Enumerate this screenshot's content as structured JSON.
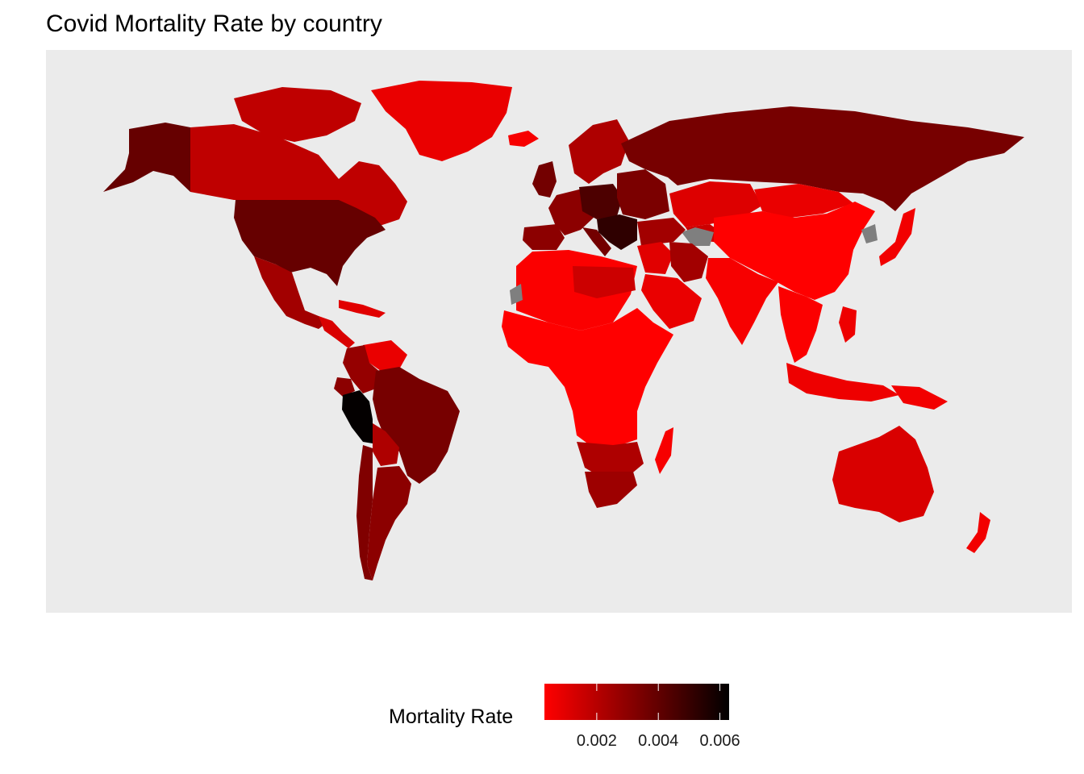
{
  "title": "Covid Mortality Rate by country",
  "map": {
    "background": "#EBEBEB",
    "missing_color": "#7F7F7F",
    "scale": {
      "low": "#FF0000",
      "high": "#000000",
      "range": [
        0.0003,
        0.0063
      ]
    },
    "regions": [
      {
        "name": "greenland",
        "value": 0.0008
      },
      {
        "name": "canada",
        "value": 0.0018
      },
      {
        "name": "alaska",
        "value": 0.0039
      },
      {
        "name": "usa",
        "value": 0.0039
      },
      {
        "name": "mexico",
        "value": 0.0025
      },
      {
        "name": "central-america",
        "value": 0.0012
      },
      {
        "name": "cuba",
        "value": 0.001
      },
      {
        "name": "colombia",
        "value": 0.0028
      },
      {
        "name": "venezuela",
        "value": 0.0008
      },
      {
        "name": "ecuador",
        "value": 0.003
      },
      {
        "name": "peru",
        "value": 0.0062
      },
      {
        "name": "brazil",
        "value": 0.0035
      },
      {
        "name": "bolivia",
        "value": 0.0022
      },
      {
        "name": "argentina",
        "value": 0.003
      },
      {
        "name": "chile",
        "value": 0.0033
      },
      {
        "name": "iceland",
        "value": 0.0005
      },
      {
        "name": "uk-ireland",
        "value": 0.0036
      },
      {
        "name": "scandinavia",
        "value": 0.0022
      },
      {
        "name": "western-europe",
        "value": 0.003
      },
      {
        "name": "iberia",
        "value": 0.003
      },
      {
        "name": "italy",
        "value": 0.0036
      },
      {
        "name": "central-europe",
        "value": 0.0045
      },
      {
        "name": "balkans",
        "value": 0.0052
      },
      {
        "name": "russia",
        "value": 0.0035
      },
      {
        "name": "ukraine",
        "value": 0.0034
      },
      {
        "name": "kazakhstan",
        "value": 0.0011
      },
      {
        "name": "central-asia",
        "value": 0.0015
      },
      {
        "name": "turkey",
        "value": 0.0025
      },
      {
        "name": "iran",
        "value": 0.0025
      },
      {
        "name": "middle-east",
        "value": 0.001
      },
      {
        "name": "arabia",
        "value": 0.0008
      },
      {
        "name": "north-africa",
        "value": 0.0004
      },
      {
        "name": "egypt",
        "value": 0.0015
      },
      {
        "name": "sub-saharan-africa",
        "value": 0.0003
      },
      {
        "name": "southern-africa",
        "value": 0.0022
      },
      {
        "name": "south-africa",
        "value": 0.0026
      },
      {
        "name": "madagascar",
        "value": 0.0005
      },
      {
        "name": "mongolia",
        "value": 0.0008
      },
      {
        "name": "china",
        "value": 0.0003
      },
      {
        "name": "india",
        "value": 0.0005
      },
      {
        "name": "southeast-asia",
        "value": 0.0004
      },
      {
        "name": "japan",
        "value": 0.0006
      },
      {
        "name": "indonesia",
        "value": 0.0007
      },
      {
        "name": "philippines",
        "value": 0.0007
      },
      {
        "name": "new-guinea",
        "value": 0.0006
      },
      {
        "name": "australia",
        "value": 0.0012
      },
      {
        "name": "new-zealand",
        "value": 0.0006
      }
    ],
    "missing_regions": [
      "afghanistan-tajikistan",
      "north-korea",
      "western-sahara"
    ]
  },
  "legend": {
    "title": "Mortality Rate",
    "ticks": [
      {
        "value": 0.002,
        "label": "0.002"
      },
      {
        "value": 0.004,
        "label": "0.004"
      },
      {
        "value": 0.006,
        "label": "0.006"
      }
    ]
  }
}
